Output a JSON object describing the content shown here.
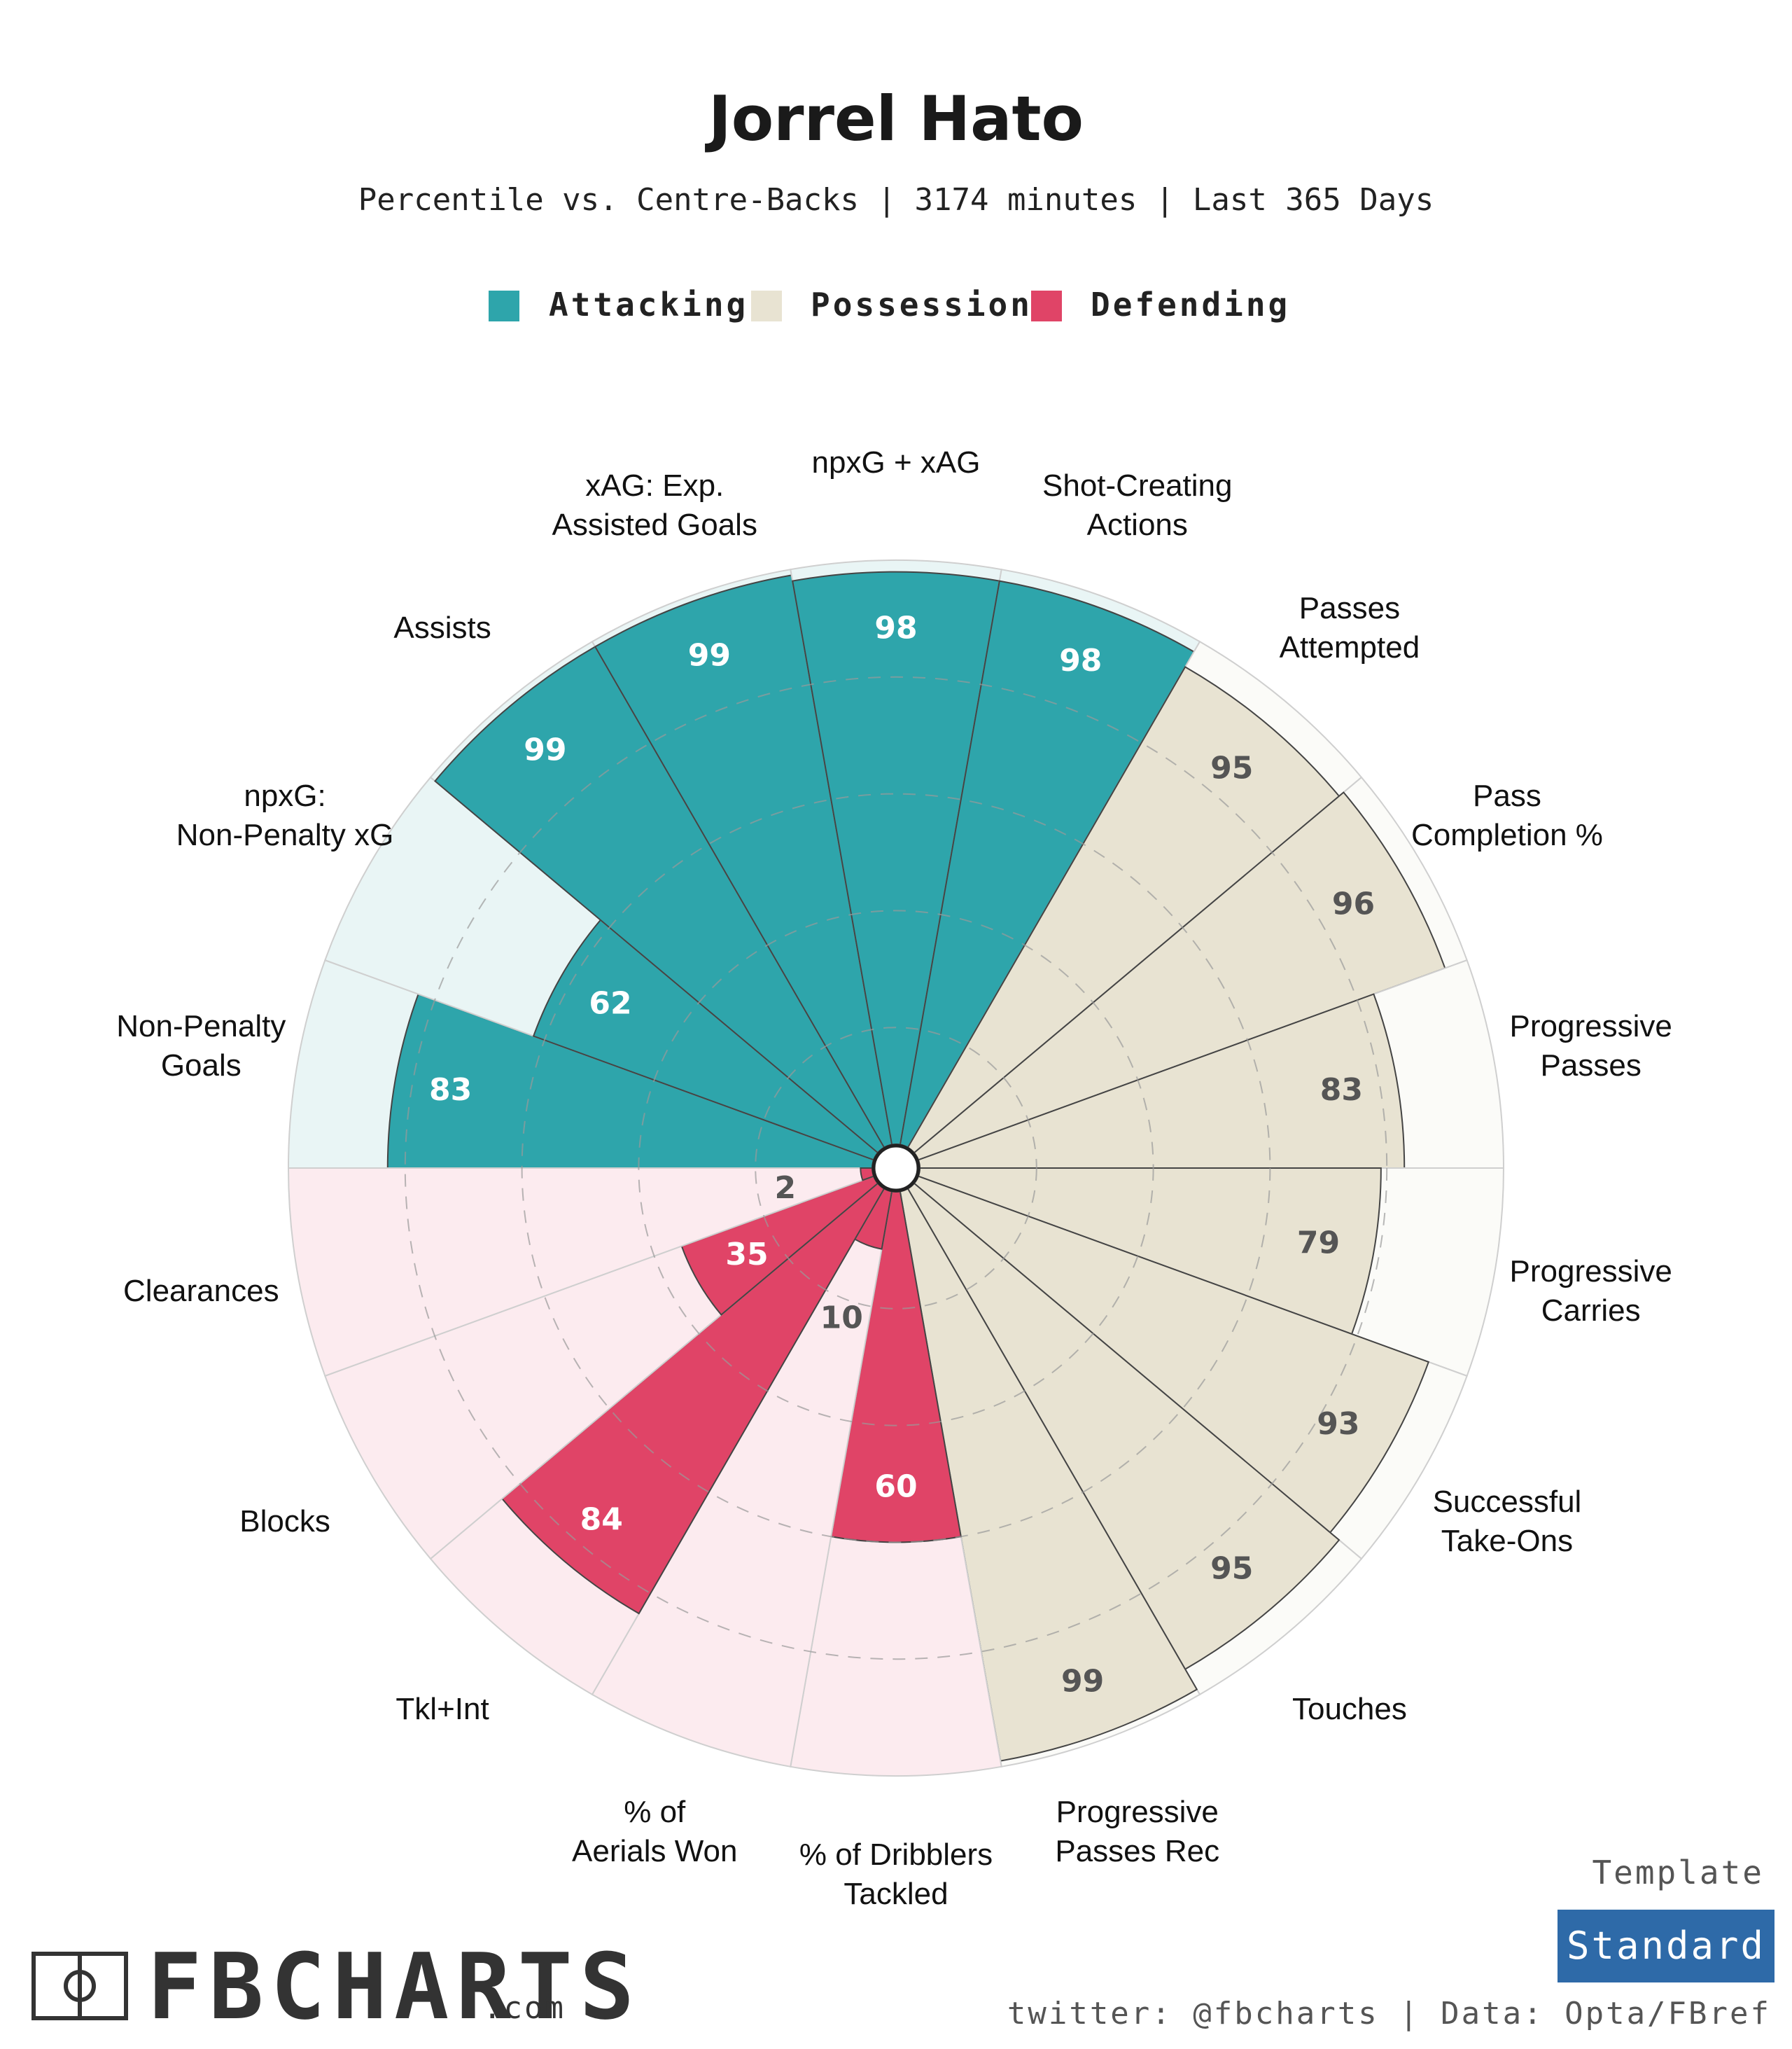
{
  "chart_data": {
    "type": "polar-bar",
    "title": "Jorrel Hato",
    "subtitle": "Percentile vs. Centre-Backs | 3174 minutes | Last 365 Days",
    "rlim": [
      0,
      100
    ],
    "legend": [
      {
        "name": "Attacking",
        "color": "#2ea5ab"
      },
      {
        "name": "Possession",
        "color": "#e8e3d2"
      },
      {
        "name": "Defending",
        "color": "#e04467"
      }
    ],
    "categories": [
      {
        "label": "Non-Penalty Goals",
        "value": 83,
        "group": "Attacking"
      },
      {
        "label": "npxG: Non-Penalty xG",
        "value": 62,
        "group": "Attacking"
      },
      {
        "label": "Assists",
        "value": 99,
        "group": "Attacking"
      },
      {
        "label": "xAG: Exp. Assisted Goals",
        "value": 99,
        "group": "Attacking"
      },
      {
        "label": "npxG + xAG",
        "value": 98,
        "group": "Attacking"
      },
      {
        "label": "Shot-Creating Actions",
        "value": 98,
        "group": "Attacking"
      },
      {
        "label": "Passes Attempted",
        "value": 95,
        "group": "Possession"
      },
      {
        "label": "Pass Completion %",
        "value": 96,
        "group": "Possession"
      },
      {
        "label": "Progressive Passes",
        "value": 83,
        "group": "Possession"
      },
      {
        "label": "Progressive Carries",
        "value": 79,
        "group": "Possession"
      },
      {
        "label": "Successful Take-Ons",
        "value": 93,
        "group": "Possession"
      },
      {
        "label": "Touches",
        "value": 95,
        "group": "Possession"
      },
      {
        "label": "Progressive Passes Rec",
        "value": 99,
        "group": "Possession"
      },
      {
        "label": "% of Dribblers Tackled",
        "value": 60,
        "group": "Defending"
      },
      {
        "label": "% of Aerials Won",
        "value": 10,
        "group": "Defending"
      },
      {
        "label": "Tkl+Int",
        "value": 84,
        "group": "Defending"
      },
      {
        "label": "Blocks",
        "value": 35,
        "group": "Defending"
      },
      {
        "label": "Clearances",
        "value": 2,
        "group": "Defending"
      }
    ],
    "colors": {
      "Attacking": {
        "bar": "#2ea5ab",
        "bg": "#e9f5f5",
        "text": "#ffffff"
      },
      "Possession": {
        "bar": "#e8e3d2",
        "bg": "#fbfbf8",
        "text": "#555555"
      },
      "Defending": {
        "bar": "#e04467",
        "bg": "#fcebef",
        "text": "#ffffff"
      }
    }
  },
  "footer": {
    "brand": "FBCHARTS",
    "brand_suffix": ".com",
    "credit": "twitter: @fbcharts | Data: Opta/FBref",
    "template_label": "Template",
    "template_value": "Standard",
    "template_color": "#2e6aa8"
  }
}
